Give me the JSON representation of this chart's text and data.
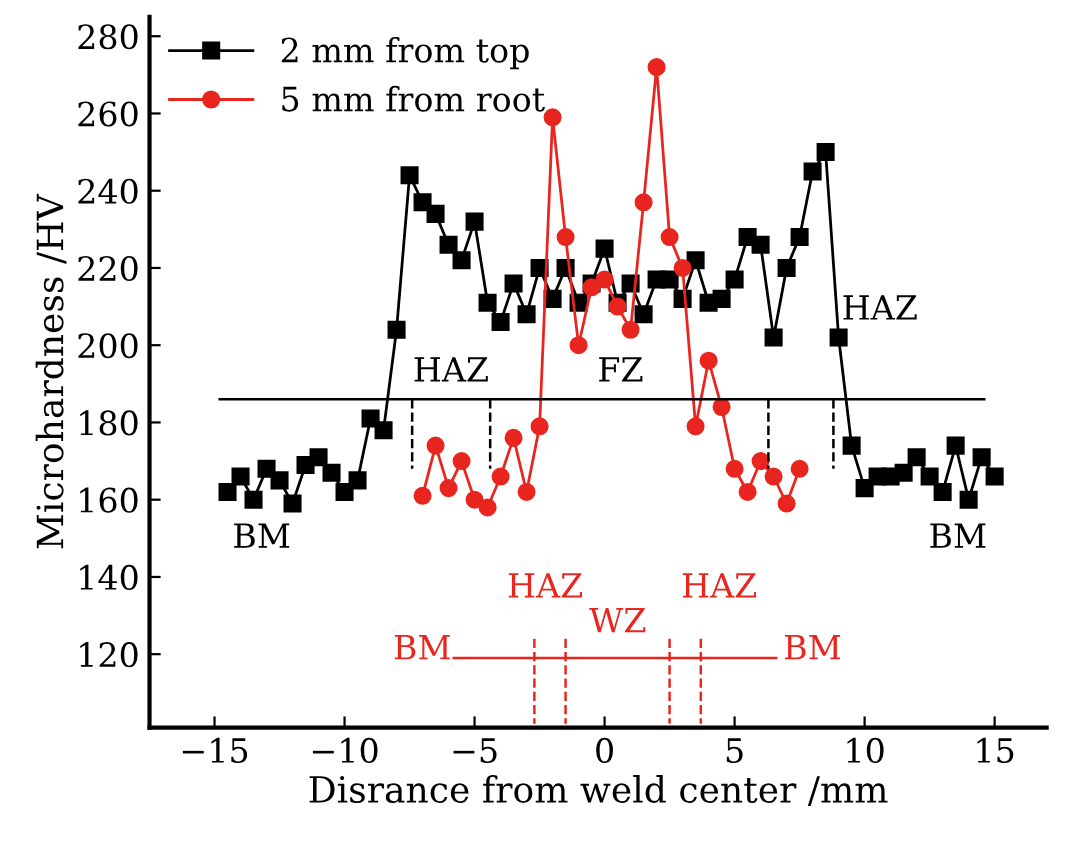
{
  "chart_data": {
    "type": "line",
    "xlabel": "Disrance from weld center /mm",
    "ylabel": "Microhardness /HV",
    "xlim": [
      -17.5,
      17
    ],
    "ylim": [
      101,
      285
    ],
    "xticks": [
      -15,
      -10,
      -5,
      0,
      5,
      10,
      15
    ],
    "yticks": [
      120,
      140,
      160,
      180,
      200,
      220,
      240,
      260,
      280
    ],
    "grid": false,
    "legend": "top left",
    "series": [
      {
        "name": "2 mm from top",
        "color": "#000000",
        "marker": "square",
        "line_style": "solid",
        "x": [
          -14.5,
          -14,
          -13.5,
          -13,
          -12.5,
          -12,
          -11.5,
          -11,
          -10.5,
          -10,
          -9.5,
          -9,
          -8.5,
          -8,
          -7.5,
          -7,
          -6.5,
          -6,
          -5.5,
          -5,
          -4.5,
          -4,
          -3.5,
          -3,
          -2.5,
          -2,
          -1.5,
          -1,
          -0.5,
          0,
          0.5,
          1,
          1.5,
          2,
          2.5,
          3,
          3.5,
          4,
          4.5,
          5,
          5.5,
          6,
          6.5,
          7,
          7.5,
          8,
          8.5,
          9,
          9.5,
          10,
          10.5,
          11,
          11.5,
          12,
          12.5,
          13,
          13.5,
          14,
          14.5,
          15
        ],
        "values": [
          162,
          166,
          160,
          168,
          165,
          159,
          169,
          171,
          167,
          162,
          165,
          181,
          178,
          204,
          244,
          237,
          234,
          226,
          222,
          232,
          211,
          206,
          216,
          208,
          220,
          212,
          220,
          211,
          216,
          225,
          211,
          216,
          208,
          217,
          217,
          212,
          222,
          211,
          212,
          217,
          228,
          226,
          202,
          220,
          228,
          245,
          250,
          202,
          174,
          163,
          166,
          166,
          167,
          171,
          166,
          162,
          174,
          160,
          171,
          166
        ]
      },
      {
        "name": "5 mm from root",
        "color": "#e8251f",
        "marker": "circle",
        "line_style": "solid",
        "x": [
          -7,
          -6.5,
          -6,
          -5.5,
          -5,
          -4.5,
          -4,
          -3.5,
          -3,
          -2.5,
          -2,
          -1.5,
          -1,
          -0.5,
          0,
          0.5,
          1,
          1.5,
          2,
          2.5,
          3,
          3.5,
          4,
          4.5,
          5,
          5.5,
          6,
          6.5,
          7,
          7.5
        ],
        "values": [
          161,
          174,
          163,
          170,
          160,
          158,
          166,
          176,
          162,
          179,
          259,
          228,
          200,
          215,
          217,
          210,
          204,
          237,
          272,
          228,
          220,
          179,
          196,
          184,
          168,
          162,
          170,
          166,
          159,
          168
        ]
      },
      {
        "type": "line",
        "color": "#000000",
        "marker": "none",
        "line_style": "solid",
        "x": [
          -14.8,
          14.6
        ],
        "values": [
          186,
          186
        ]
      },
      {
        "type": "line",
        "color": "#000000",
        "marker": "none",
        "line_style": "dashed",
        "x": [
          -7.4,
          -7.4
        ],
        "values": [
          186,
          168
        ]
      },
      {
        "type": "line",
        "color": "#000000",
        "marker": "none",
        "line_style": "dashed",
        "x": [
          -4.4,
          -4.4
        ],
        "values": [
          186,
          168
        ]
      },
      {
        "type": "line",
        "color": "#000000",
        "marker": "none",
        "line_style": "dashed",
        "x": [
          6.3,
          6.3
        ],
        "values": [
          186,
          168
        ]
      },
      {
        "type": "line",
        "color": "#000000",
        "marker": "none",
        "line_style": "dashed",
        "x": [
          8.8,
          8.8
        ],
        "values": [
          186,
          168
        ]
      },
      {
        "type": "line",
        "color": "#e8251f",
        "marker": "none",
        "line_style": "solid",
        "x": [
          -5.8,
          6.6
        ],
        "values": [
          119,
          119
        ]
      },
      {
        "type": "line",
        "color": "#e8251f",
        "marker": "none",
        "line_style": "dashed",
        "x": [
          -2.7,
          -2.7
        ],
        "values": [
          124,
          102
        ]
      },
      {
        "type": "line",
        "color": "#e8251f",
        "marker": "none",
        "line_style": "dashed",
        "x": [
          -1.5,
          -1.5
        ],
        "values": [
          124,
          102
        ]
      },
      {
        "type": "line",
        "color": "#e8251f",
        "marker": "none",
        "line_style": "dashed",
        "x": [
          2.5,
          2.5
        ],
        "values": [
          124,
          102
        ]
      },
      {
        "type": "line",
        "color": "#e8251f",
        "marker": "none",
        "line_style": "dashed",
        "x": [
          3.7,
          3.7
        ],
        "values": [
          124,
          102
        ]
      }
    ],
    "annotations": [
      "BM",
      "HAZ",
      "FZ",
      "HAZ",
      "BM",
      "HAZ",
      "BM",
      "WZ",
      "HAZ",
      "BM"
    ]
  }
}
